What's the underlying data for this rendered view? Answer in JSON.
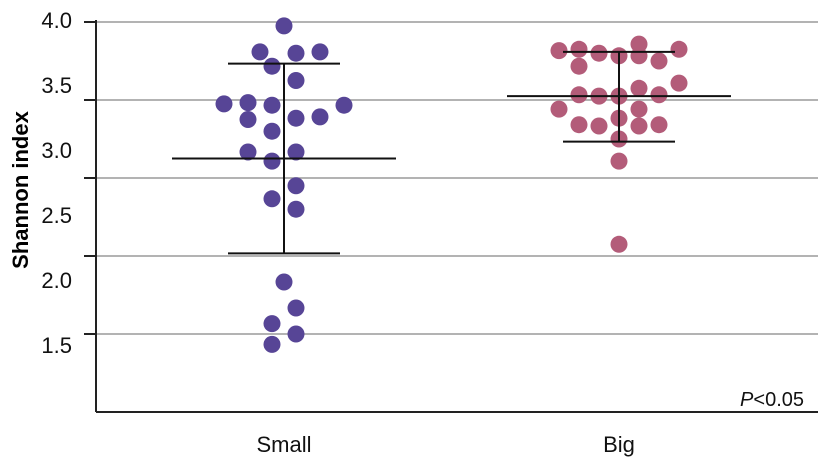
{
  "chart_data": {
    "type": "scatter",
    "xlabel": "",
    "ylabel": "Shannon index",
    "ylim": [
      1.0,
      4.0
    ],
    "yticks": [
      "4.0",
      "3.5",
      "3.0",
      "2.5",
      "2.0",
      "1.5"
    ],
    "grid": true,
    "categories": [
      "Small",
      "Big"
    ],
    "series": [
      {
        "category": "Small",
        "color": "#574596",
        "mean": 2.95,
        "error_upper": 3.68,
        "error_lower": 2.22,
        "points": [
          {
            "j": 0.0,
            "v": 3.97
          },
          {
            "j": -0.6,
            "v": 3.77
          },
          {
            "j": 0.3,
            "v": 3.76
          },
          {
            "j": 0.9,
            "v": 3.77
          },
          {
            "j": -0.3,
            "v": 3.66
          },
          {
            "j": 0.3,
            "v": 3.55
          },
          {
            "j": -1.5,
            "v": 3.37
          },
          {
            "j": -0.9,
            "v": 3.38
          },
          {
            "j": -0.3,
            "v": 3.36
          },
          {
            "j": 1.5,
            "v": 3.36
          },
          {
            "j": -0.9,
            "v": 3.25
          },
          {
            "j": 0.3,
            "v": 3.26
          },
          {
            "j": 0.9,
            "v": 3.27
          },
          {
            "j": -0.3,
            "v": 3.16
          },
          {
            "j": -0.9,
            "v": 3.0
          },
          {
            "j": 0.3,
            "v": 3.0
          },
          {
            "j": -0.3,
            "v": 2.93
          },
          {
            "j": 0.3,
            "v": 2.74
          },
          {
            "j": -0.3,
            "v": 2.64
          },
          {
            "j": 0.3,
            "v": 2.56
          },
          {
            "j": 0.0,
            "v": 2.0
          },
          {
            "j": 0.3,
            "v": 1.8
          },
          {
            "j": -0.3,
            "v": 1.68
          },
          {
            "j": 0.3,
            "v": 1.6
          },
          {
            "j": -0.3,
            "v": 1.52
          }
        ]
      },
      {
        "category": "Big",
        "color": "#b35c79",
        "mean": 3.43,
        "error_upper": 3.77,
        "error_lower": 3.08,
        "points": [
          {
            "j": -1.5,
            "v": 3.78
          },
          {
            "j": -1.0,
            "v": 3.79
          },
          {
            "j": -0.5,
            "v": 3.76
          },
          {
            "j": 0.0,
            "v": 3.74
          },
          {
            "j": 0.5,
            "v": 3.83
          },
          {
            "j": 1.0,
            "v": 3.7
          },
          {
            "j": 1.5,
            "v": 3.79
          },
          {
            "j": -1.0,
            "v": 3.66
          },
          {
            "j": 0.5,
            "v": 3.74
          },
          {
            "j": 1.5,
            "v": 3.53
          },
          {
            "j": -1.0,
            "v": 3.44
          },
          {
            "j": -0.5,
            "v": 3.43
          },
          {
            "j": 0.0,
            "v": 3.43
          },
          {
            "j": 0.5,
            "v": 3.49
          },
          {
            "j": 1.0,
            "v": 3.44
          },
          {
            "j": -1.5,
            "v": 3.33
          },
          {
            "j": 0.5,
            "v": 3.33
          },
          {
            "j": 0.0,
            "v": 3.26
          },
          {
            "j": -1.0,
            "v": 3.21
          },
          {
            "j": -0.5,
            "v": 3.2
          },
          {
            "j": 0.5,
            "v": 3.2
          },
          {
            "j": 1.0,
            "v": 3.21
          },
          {
            "j": 0.0,
            "v": 3.1
          },
          {
            "j": 0.0,
            "v": 2.93
          },
          {
            "j": 0.0,
            "v": 2.29
          }
        ]
      }
    ],
    "annotation_italic": "P",
    "annotation_rest": "<0.05"
  }
}
